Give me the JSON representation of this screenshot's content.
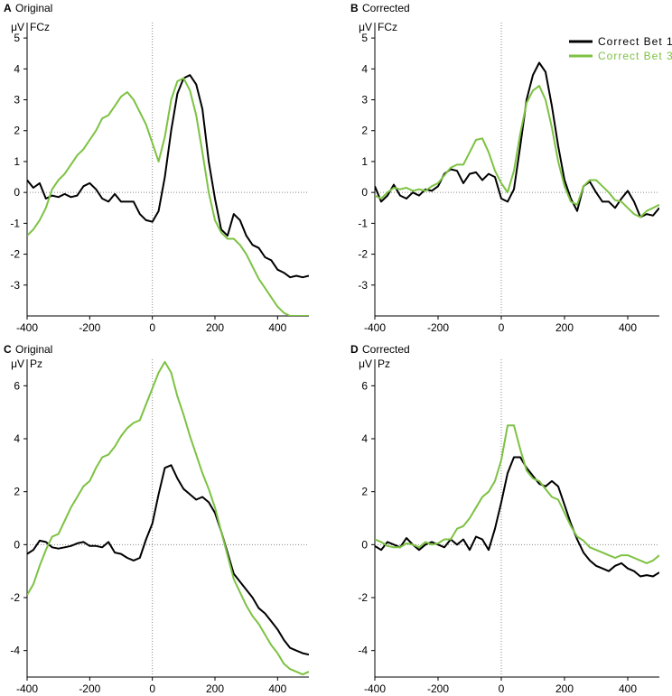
{
  "legend": {
    "items": [
      {
        "label": "Correct Bet 1",
        "color": "#000000"
      },
      {
        "label": "Correct Bet 3",
        "color": "#7dc242"
      }
    ]
  },
  "chart_data": [
    {
      "type": "line",
      "panel": "A",
      "title": "Original",
      "channel": "FCz",
      "ylabel": "μV",
      "xlabel": "",
      "xlim": [
        -400,
        500
      ],
      "ylim": [
        -4,
        5.5
      ],
      "xticks": [
        -400,
        -200,
        0,
        200,
        400
      ],
      "yticks": [
        -3,
        -2,
        -1,
        0,
        1,
        2,
        3,
        4,
        5
      ],
      "series": [
        {
          "name": "Correct Bet 1",
          "color": "#000000",
          "x": [
            -400,
            -380,
            -360,
            -340,
            -320,
            -300,
            -280,
            -260,
            -240,
            -220,
            -200,
            -180,
            -160,
            -140,
            -120,
            -100,
            -80,
            -60,
            -40,
            -20,
            0,
            20,
            40,
            60,
            80,
            100,
            120,
            140,
            160,
            180,
            200,
            220,
            240,
            260,
            280,
            300,
            320,
            340,
            360,
            380,
            400,
            420,
            440,
            460,
            480,
            500
          ],
          "y": [
            0.4,
            0.15,
            0.3,
            -0.2,
            -0.1,
            -0.15,
            -0.05,
            -0.15,
            -0.1,
            0.2,
            0.3,
            0.1,
            -0.2,
            -0.3,
            -0.05,
            -0.3,
            -0.3,
            -0.3,
            -0.7,
            -0.9,
            -0.95,
            -0.6,
            0.5,
            2.0,
            3.2,
            3.7,
            3.8,
            3.5,
            2.7,
            1.0,
            -0.2,
            -1.2,
            -1.4,
            -0.7,
            -0.9,
            -1.4,
            -1.7,
            -1.8,
            -2.1,
            -2.2,
            -2.5,
            -2.6,
            -2.75,
            -2.7,
            -2.75,
            -2.7
          ]
        },
        {
          "name": "Correct Bet 3",
          "color": "#7dc242",
          "x": [
            -400,
            -380,
            -360,
            -340,
            -320,
            -300,
            -280,
            -260,
            -240,
            -220,
            -200,
            -180,
            -160,
            -140,
            -120,
            -100,
            -80,
            -60,
            -40,
            -20,
            0,
            20,
            40,
            60,
            80,
            100,
            120,
            140,
            160,
            180,
            200,
            220,
            240,
            260,
            280,
            300,
            320,
            340,
            360,
            380,
            400,
            420,
            440,
            460,
            480,
            500
          ],
          "y": [
            -1.4,
            -1.2,
            -0.9,
            -0.5,
            0.1,
            0.4,
            0.6,
            0.9,
            1.2,
            1.4,
            1.7,
            2.0,
            2.4,
            2.5,
            2.8,
            3.1,
            3.25,
            3.0,
            2.6,
            2.2,
            1.6,
            1.0,
            1.8,
            3.0,
            3.6,
            3.7,
            3.3,
            2.5,
            1.3,
            0.0,
            -0.9,
            -1.3,
            -1.5,
            -1.5,
            -1.7,
            -2.0,
            -2.4,
            -2.8,
            -3.1,
            -3.4,
            -3.7,
            -3.9,
            -4.0,
            -4.0,
            -4.0,
            -4.0
          ]
        }
      ]
    },
    {
      "type": "line",
      "panel": "B",
      "title": "Corrected",
      "channel": "FCz",
      "ylabel": "μV",
      "xlabel": "",
      "xlim": [
        -400,
        500
      ],
      "ylim": [
        -4,
        5.5
      ],
      "xticks": [
        -400,
        -200,
        0,
        200,
        400
      ],
      "yticks": [
        -3,
        -2,
        -1,
        0,
        1,
        2,
        3,
        4,
        5
      ],
      "series": [
        {
          "name": "Correct Bet 1",
          "color": "#000000",
          "x": [
            -400,
            -380,
            -360,
            -340,
            -320,
            -300,
            -280,
            -260,
            -240,
            -220,
            -200,
            -180,
            -160,
            -140,
            -120,
            -100,
            -80,
            -60,
            -40,
            -20,
            0,
            20,
            40,
            60,
            80,
            100,
            120,
            140,
            160,
            180,
            200,
            220,
            240,
            260,
            280,
            300,
            320,
            340,
            360,
            380,
            400,
            420,
            440,
            460,
            480,
            500
          ],
          "y": [
            0.2,
            -0.3,
            -0.1,
            0.25,
            -0.1,
            -0.2,
            0.0,
            -0.1,
            0.1,
            0.05,
            0.2,
            0.6,
            0.75,
            0.7,
            0.3,
            0.6,
            0.65,
            0.4,
            0.6,
            0.5,
            -0.2,
            -0.3,
            0.1,
            1.5,
            3.0,
            3.8,
            4.2,
            3.9,
            2.8,
            1.5,
            0.4,
            -0.2,
            -0.6,
            0.2,
            0.35,
            0.0,
            -0.3,
            -0.3,
            -0.5,
            -0.2,
            0.05,
            -0.3,
            -0.8,
            -0.7,
            -0.75,
            -0.5
          ]
        },
        {
          "name": "Correct Bet 3",
          "color": "#7dc242",
          "x": [
            -400,
            -380,
            -360,
            -340,
            -320,
            -300,
            -280,
            -260,
            -240,
            -220,
            -200,
            -180,
            -160,
            -140,
            -120,
            -100,
            -80,
            -60,
            -40,
            -20,
            0,
            20,
            40,
            60,
            80,
            100,
            120,
            140,
            160,
            180,
            200,
            220,
            240,
            260,
            280,
            300,
            320,
            340,
            360,
            380,
            400,
            420,
            440,
            460,
            480,
            500
          ],
          "y": [
            -0.1,
            -0.2,
            0.0,
            0.15,
            0.1,
            0.15,
            0.05,
            0.1,
            0.05,
            0.2,
            0.3,
            0.55,
            0.8,
            0.9,
            0.9,
            1.3,
            1.7,
            1.75,
            1.3,
            0.7,
            0.3,
            0.0,
            0.7,
            1.9,
            2.9,
            3.3,
            3.45,
            3.0,
            2.1,
            1.0,
            0.2,
            -0.3,
            -0.4,
            0.2,
            0.4,
            0.4,
            0.2,
            0.0,
            -0.25,
            -0.3,
            -0.5,
            -0.7,
            -0.8,
            -0.6,
            -0.5,
            -0.4
          ]
        }
      ]
    },
    {
      "type": "line",
      "panel": "C",
      "title": "Original",
      "channel": "Pz",
      "ylabel": "μV",
      "xlabel": "",
      "xlim": [
        -400,
        500
      ],
      "ylim": [
        -5,
        7
      ],
      "xticks": [
        -400,
        -200,
        0,
        200,
        400
      ],
      "yticks": [
        -4,
        -2,
        0,
        2,
        4,
        6
      ],
      "series": [
        {
          "name": "Correct Bet 1",
          "color": "#000000",
          "x": [
            -400,
            -380,
            -360,
            -340,
            -320,
            -300,
            -280,
            -260,
            -240,
            -220,
            -200,
            -180,
            -160,
            -140,
            -120,
            -100,
            -80,
            -60,
            -40,
            -20,
            0,
            20,
            40,
            60,
            80,
            100,
            120,
            140,
            160,
            180,
            200,
            220,
            240,
            260,
            280,
            300,
            320,
            340,
            360,
            380,
            400,
            420,
            440,
            460,
            480,
            500
          ],
          "y": [
            -0.35,
            -0.2,
            0.15,
            0.1,
            -0.1,
            -0.15,
            -0.1,
            -0.05,
            0.05,
            0.1,
            -0.05,
            -0.05,
            -0.1,
            0.1,
            -0.3,
            -0.35,
            -0.5,
            -0.6,
            -0.5,
            0.2,
            0.8,
            1.9,
            2.9,
            3.0,
            2.5,
            2.1,
            1.9,
            1.7,
            1.8,
            1.6,
            1.2,
            0.5,
            -0.3,
            -1.1,
            -1.4,
            -1.7,
            -2.0,
            -2.4,
            -2.6,
            -2.9,
            -3.2,
            -3.6,
            -3.9,
            -4.0,
            -4.1,
            -4.15
          ]
        },
        {
          "name": "Correct Bet 3",
          "color": "#7dc242",
          "x": [
            -400,
            -380,
            -360,
            -340,
            -320,
            -300,
            -280,
            -260,
            -240,
            -220,
            -200,
            -180,
            -160,
            -140,
            -120,
            -100,
            -80,
            -60,
            -40,
            -20,
            0,
            20,
            40,
            60,
            80,
            100,
            120,
            140,
            160,
            180,
            200,
            220,
            240,
            260,
            280,
            300,
            320,
            340,
            360,
            380,
            400,
            420,
            440,
            460,
            480,
            500
          ],
          "y": [
            -1.9,
            -1.5,
            -0.8,
            -0.2,
            0.3,
            0.4,
            0.9,
            1.4,
            1.8,
            2.2,
            2.4,
            2.9,
            3.3,
            3.4,
            3.7,
            4.1,
            4.4,
            4.6,
            4.7,
            5.3,
            5.9,
            6.5,
            6.9,
            6.5,
            5.6,
            4.9,
            4.1,
            3.4,
            2.7,
            2.1,
            1.4,
            0.5,
            -0.4,
            -1.3,
            -1.8,
            -2.3,
            -2.7,
            -3.0,
            -3.4,
            -3.8,
            -4.1,
            -4.5,
            -4.7,
            -4.8,
            -4.9,
            -4.8
          ]
        }
      ]
    },
    {
      "type": "line",
      "panel": "D",
      "title": "Corrected",
      "channel": "Pz",
      "ylabel": "μV",
      "xlabel": "",
      "xlim": [
        -400,
        500
      ],
      "ylim": [
        -5,
        7
      ],
      "xticks": [
        -400,
        -200,
        0,
        200,
        400
      ],
      "yticks": [
        -4,
        -2,
        0,
        2,
        4,
        6
      ],
      "series": [
        {
          "name": "Correct Bet 1",
          "color": "#000000",
          "x": [
            -400,
            -380,
            -360,
            -340,
            -320,
            -300,
            -280,
            -260,
            -240,
            -220,
            -200,
            -180,
            -160,
            -140,
            -120,
            -100,
            -80,
            -60,
            -40,
            -20,
            0,
            20,
            40,
            60,
            80,
            100,
            120,
            140,
            160,
            180,
            200,
            220,
            240,
            260,
            280,
            300,
            320,
            340,
            360,
            380,
            400,
            420,
            440,
            460,
            480,
            500
          ],
          "y": [
            -0.05,
            -0.2,
            0.1,
            0.0,
            -0.1,
            0.25,
            0.0,
            -0.2,
            0.0,
            0.1,
            0.0,
            -0.1,
            0.2,
            0.0,
            0.2,
            -0.2,
            0.3,
            0.2,
            -0.2,
            0.6,
            1.6,
            2.7,
            3.3,
            3.3,
            2.9,
            2.6,
            2.3,
            2.2,
            2.4,
            2.2,
            1.5,
            0.8,
            0.2,
            -0.3,
            -0.6,
            -0.8,
            -0.9,
            -1.0,
            -0.8,
            -0.7,
            -0.9,
            -1.0,
            -1.2,
            -1.15,
            -1.2,
            -1.05
          ]
        },
        {
          "name": "Correct Bet 3",
          "color": "#7dc242",
          "x": [
            -400,
            -380,
            -360,
            -340,
            -320,
            -300,
            -280,
            -260,
            -240,
            -220,
            -200,
            -180,
            -160,
            -140,
            -120,
            -100,
            -80,
            -60,
            -40,
            -20,
            0,
            20,
            40,
            60,
            80,
            100,
            120,
            140,
            160,
            180,
            200,
            220,
            240,
            260,
            280,
            300,
            320,
            340,
            360,
            380,
            400,
            420,
            440,
            460,
            480,
            500
          ],
          "y": [
            0.2,
            0.1,
            -0.05,
            -0.1,
            -0.1,
            0.05,
            0.0,
            -0.1,
            0.1,
            0.0,
            0.05,
            0.2,
            0.2,
            0.6,
            0.7,
            1.0,
            1.4,
            1.8,
            2.0,
            2.4,
            3.2,
            4.5,
            4.5,
            3.6,
            2.8,
            2.5,
            2.4,
            2.1,
            1.8,
            1.7,
            1.2,
            0.7,
            0.3,
            0.15,
            -0.1,
            -0.2,
            -0.3,
            -0.4,
            -0.5,
            -0.4,
            -0.4,
            -0.5,
            -0.6,
            -0.7,
            -0.6,
            -0.4
          ]
        }
      ]
    }
  ]
}
